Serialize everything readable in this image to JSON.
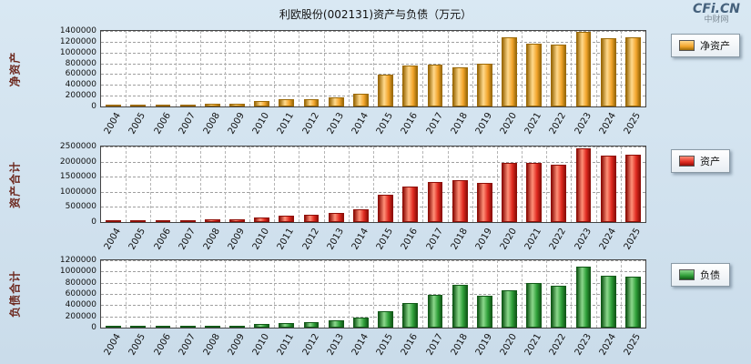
{
  "page": {
    "title": "利欧股份(002131)资产与负债（万元）",
    "logo": "CFi.CN",
    "logo_sub": "中财网",
    "background": "#cfdfeb"
  },
  "chart_data": [
    {
      "type": "bar",
      "ylabel": "净资产",
      "legend": "净资产",
      "color": "#f2a52c",
      "color_light": "#ffd98c",
      "color_dark": "#9c6a08",
      "ylim": [
        0,
        1400000
      ],
      "ytick_step": 200000,
      "grid": true,
      "legend_position": "right",
      "categories": [
        "2004",
        "2005",
        "2006",
        "2007",
        "2008",
        "2009",
        "2010",
        "2011",
        "2012",
        "2013",
        "2014",
        "2015",
        "2016",
        "2017",
        "2018",
        "2019",
        "2020",
        "2021",
        "2022",
        "2023",
        "2024",
        "2025"
      ],
      "values": [
        9000,
        10000,
        15000,
        35000,
        45000,
        50000,
        95000,
        130000,
        140000,
        165000,
        230000,
        590000,
        760000,
        780000,
        730000,
        800000,
        1290000,
        1170000,
        1150000,
        1390000,
        1270000,
        1290000
      ]
    },
    {
      "type": "bar",
      "ylabel": "资产合计",
      "legend": "资产",
      "color": "#e02a20",
      "color_light": "#ff9078",
      "color_dark": "#8f0f08",
      "ylim": [
        0,
        2500000
      ],
      "ytick_step": 500000,
      "grid": true,
      "legend_position": "right",
      "categories": [
        "2004",
        "2005",
        "2006",
        "2007",
        "2008",
        "2009",
        "2010",
        "2011",
        "2012",
        "2013",
        "2014",
        "2015",
        "2016",
        "2017",
        "2018",
        "2019",
        "2020",
        "2021",
        "2022",
        "2023",
        "2024",
        "2025"
      ],
      "values": [
        20000,
        25000,
        35000,
        60000,
        80000,
        90000,
        160000,
        215000,
        235000,
        290000,
        410000,
        890000,
        1190000,
        1340000,
        1390000,
        1310000,
        1950000,
        1960000,
        1890000,
        2450000,
        2200000,
        2230000
      ]
    },
    {
      "type": "bar",
      "ylabel": "负债合计",
      "legend": "负债",
      "color": "#2e9e38",
      "color_light": "#8cd88c",
      "color_dark": "#125a18",
      "ylim": [
        0,
        1200000
      ],
      "ytick_step": 200000,
      "grid": true,
      "legend_position": "right",
      "categories": [
        "2004",
        "2005",
        "2006",
        "2007",
        "2008",
        "2009",
        "2010",
        "2011",
        "2012",
        "2013",
        "2014",
        "2015",
        "2016",
        "2017",
        "2018",
        "2019",
        "2020",
        "2021",
        "2022",
        "2023",
        "2024",
        "2025"
      ],
      "values": [
        10000,
        12000,
        18000,
        25000,
        35000,
        40000,
        65000,
        85000,
        95000,
        125000,
        180000,
        300000,
        430000,
        590000,
        770000,
        560000,
        660000,
        800000,
        750000,
        1090000,
        930000,
        915000
      ]
    }
  ]
}
